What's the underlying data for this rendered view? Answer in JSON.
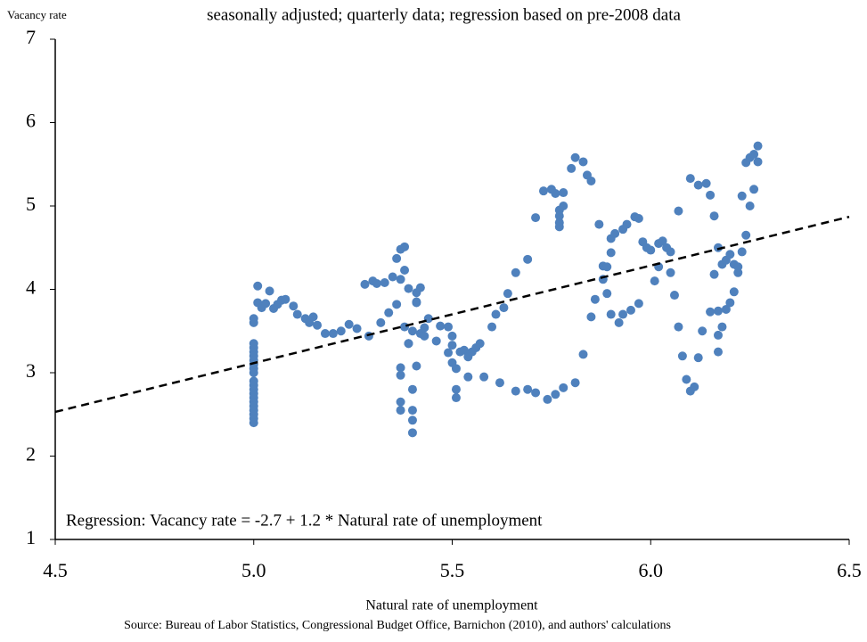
{
  "chart_data": {
    "type": "scatter",
    "y_axis_label": "Vacancy rate",
    "subtitle": "seasonally adjusted; quarterly data; regression based on pre-2008 data",
    "x_axis_label": "Natural rate of unemployment",
    "source": "Source: Bureau of Labor Statistics, Congressional Budget Office, Barnichon (2010),  and authors' calculations",
    "annotation": "Regression: Vacancy rate = -2.7 + 1.2 * Natural rate of unemployment",
    "color": "#4f81bd",
    "regression_line": {
      "x": [
        4.5,
        6.5
      ],
      "y": [
        2.53,
        4.87
      ]
    },
    "xlim": [
      4.5,
      6.5
    ],
    "xticks": [
      4.5,
      {
        "value": 5,
        "label": "5.0"
      },
      5.5,
      {
        "value": 6,
        "label": "6.0"
      },
      6.5
    ],
    "ylim": [
      1,
      7
    ],
    "yticks": [
      1,
      2,
      3,
      4,
      5,
      6,
      7
    ],
    "x": [
      5.0,
      5.0,
      5.0,
      5.0,
      5.0,
      5.0,
      5.0,
      5.0,
      5.0,
      5.0,
      5.0,
      5.0,
      5.0,
      5.0,
      5.0,
      5.0,
      5.0,
      5.0,
      5.0,
      5.0,
      5.0,
      5.01,
      5.01,
      5.02,
      5.03,
      5.04,
      5.05,
      5.06,
      5.07,
      5.08,
      5.1,
      5.11,
      5.13,
      5.14,
      5.15,
      5.16,
      5.18,
      5.2,
      5.22,
      5.24,
      5.26,
      5.28,
      5.29,
      5.3,
      5.31,
      5.32,
      5.33,
      5.34,
      5.35,
      5.36,
      5.36,
      5.37,
      5.37,
      5.38,
      5.38,
      5.38,
      5.39,
      5.39,
      5.4,
      5.41,
      5.41,
      5.42,
      5.42,
      5.43,
      5.44,
      5.46,
      5.47,
      5.49,
      5.49,
      5.5,
      5.5,
      5.5,
      5.51,
      5.51,
      5.51,
      5.52,
      5.53,
      5.54,
      5.55,
      5.56,
      5.57,
      5.54,
      5.58,
      5.6,
      5.61,
      5.63,
      5.64,
      5.66,
      5.69,
      5.71,
      5.73,
      5.75,
      5.76,
      5.77,
      5.77,
      5.77,
      5.77,
      5.78,
      5.78,
      5.8,
      5.81,
      5.83,
      5.84,
      5.85,
      5.62,
      5.66,
      5.69,
      5.71,
      5.74,
      5.76,
      5.78,
      5.81,
      5.83,
      5.85,
      5.86,
      5.87,
      5.88,
      5.88,
      5.89,
      5.89,
      5.9,
      5.9,
      5.9,
      5.91,
      5.92,
      5.93,
      5.93,
      5.94,
      5.95,
      5.96,
      5.97,
      5.97,
      5.98,
      5.99,
      6.0,
      6.01,
      6.02,
      6.02,
      6.03,
      6.04,
      6.05,
      6.05,
      6.06,
      6.07,
      6.07,
      6.08,
      6.09,
      6.1,
      6.1,
      6.11,
      6.12,
      6.12,
      6.13,
      6.14,
      6.15,
      6.15,
      6.16,
      6.16,
      6.17,
      6.17,
      6.17,
      6.17,
      6.18,
      6.18,
      6.19,
      6.19,
      6.2,
      6.2,
      6.21,
      6.21,
      6.22,
      6.22,
      6.23,
      6.23,
      6.24,
      6.24,
      6.25,
      6.25,
      6.26,
      6.26,
      6.27,
      6.27,
      5.37,
      5.37,
      5.37,
      5.37,
      5.39,
      5.4,
      5.4,
      5.4,
      5.4,
      5.41,
      5.41,
      5.43
    ],
    "values": [
      2.4,
      2.45,
      2.5,
      2.55,
      2.6,
      2.65,
      2.7,
      2.75,
      2.8,
      2.85,
      2.9,
      3.0,
      3.05,
      3.1,
      3.15,
      3.2,
      3.25,
      3.3,
      3.35,
      3.6,
      3.65,
      4.04,
      3.84,
      3.78,
      3.83,
      3.98,
      3.77,
      3.82,
      3.87,
      3.88,
      3.8,
      3.7,
      3.65,
      3.6,
      3.67,
      3.57,
      3.47,
      3.47,
      3.5,
      3.58,
      3.53,
      4.06,
      3.44,
      4.1,
      4.07,
      3.6,
      4.08,
      3.72,
      4.15,
      4.37,
      3.82,
      4.48,
      4.12,
      4.51,
      4.23,
      3.55,
      3.35,
      4.01,
      3.5,
      3.96,
      3.85,
      4.02,
      3.47,
      3.44,
      3.65,
      3.38,
      3.56,
      3.24,
      3.55,
      3.33,
      3.44,
      3.12,
      3.05,
      2.8,
      2.7,
      3.25,
      3.27,
      3.19,
      3.25,
      3.3,
      3.35,
      2.95,
      2.95,
      3.55,
      3.7,
      3.78,
      3.95,
      4.2,
      4.36,
      4.86,
      5.18,
      5.2,
      5.15,
      4.95,
      4.8,
      4.75,
      4.88,
      5.0,
      5.16,
      5.45,
      5.58,
      5.53,
      5.37,
      5.3,
      2.88,
      2.78,
      2.8,
      2.76,
      2.68,
      2.74,
      2.82,
      2.88,
      3.22,
      3.67,
      3.88,
      4.78,
      4.12,
      4.28,
      3.95,
      4.27,
      4.44,
      4.61,
      3.7,
      4.67,
      3.6,
      4.72,
      3.7,
      4.78,
      3.75,
      4.87,
      3.83,
      4.85,
      4.57,
      4.5,
      4.47,
      4.1,
      4.55,
      4.27,
      4.58,
      4.5,
      4.45,
      4.2,
      3.93,
      4.94,
      3.55,
      3.2,
      2.92,
      2.78,
      5.33,
      2.83,
      5.25,
      3.18,
      3.5,
      5.27,
      5.13,
      3.73,
      4.88,
      4.18,
      4.5,
      3.25,
      3.45,
      3.74,
      4.3,
      3.55,
      3.76,
      4.35,
      4.42,
      3.84,
      3.97,
      4.3,
      4.2,
      4.27,
      5.12,
      4.45,
      4.65,
      5.52,
      5.0,
      5.58,
      5.62,
      5.2,
      5.72,
      5.53,
      3.06,
      2.97,
      2.65,
      2.55,
      3.35,
      2.8,
      2.55,
      2.43,
      2.28,
      3.08,
      3.84,
      3.54
    ]
  }
}
